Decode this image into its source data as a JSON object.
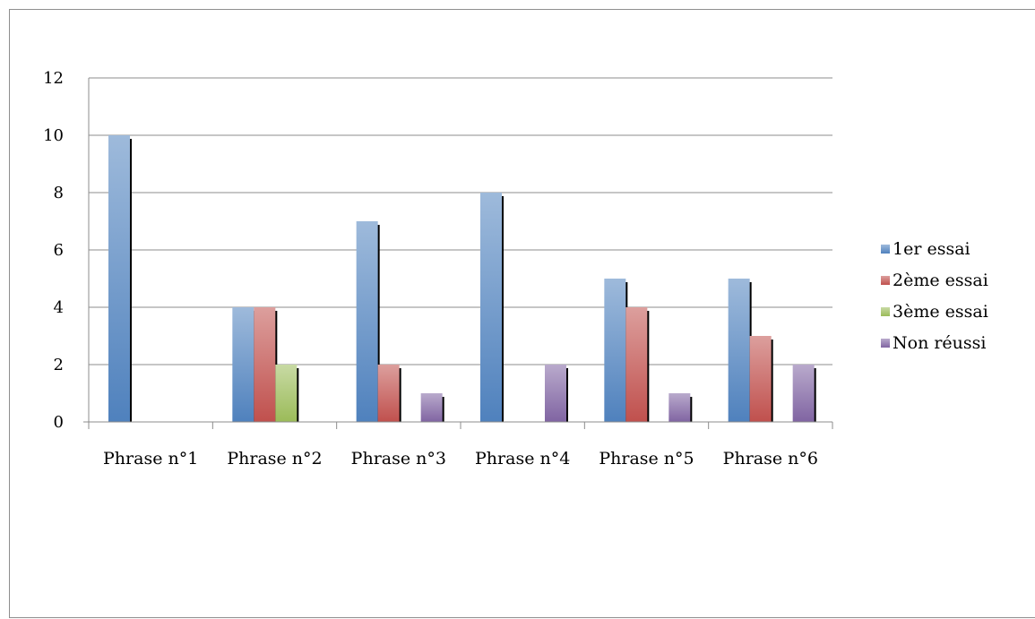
{
  "chart_data": {
    "type": "bar",
    "title": "",
    "xlabel": "",
    "ylabel": "",
    "ylim": [
      0,
      12
    ],
    "yticks": [
      0,
      2,
      4,
      6,
      8,
      10,
      12
    ],
    "grid": true,
    "legend_position": "right",
    "categories": [
      "Phrase n°1",
      "Phrase n°2",
      "Phrase n°3",
      "Phrase n°4",
      "Phrase n°5",
      "Phrase n°6"
    ],
    "series": [
      {
        "name": "1er essai",
        "color": "#4f81bd",
        "values": [
          10,
          4,
          7,
          8,
          5,
          5
        ]
      },
      {
        "name": "2ème essai",
        "color": "#c0504d",
        "values": [
          0,
          4,
          2,
          0,
          4,
          3
        ]
      },
      {
        "name": "3ème essai",
        "color": "#9bbb59",
        "values": [
          0,
          2,
          0,
          0,
          0,
          0
        ]
      },
      {
        "name": "Non réussi",
        "color": "#8064a2",
        "values": [
          0,
          0,
          1,
          2,
          1,
          2
        ]
      }
    ]
  }
}
